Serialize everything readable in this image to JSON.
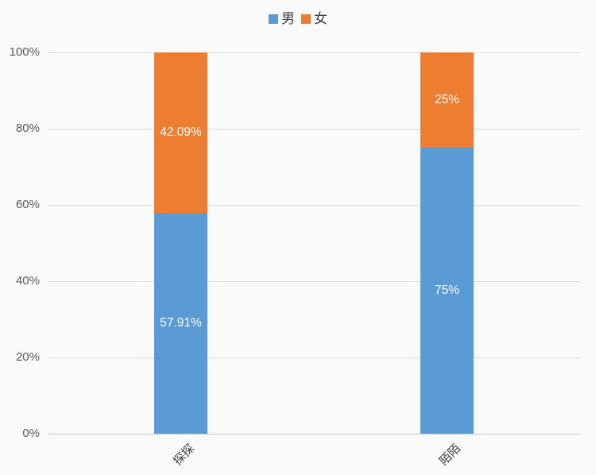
{
  "chart_data": {
    "type": "bar",
    "variant": "100-percent-stacked-column",
    "title": "",
    "xlabel": "",
    "ylabel": "",
    "categories": [
      "探探",
      "陌陌"
    ],
    "series": [
      {
        "name": "男",
        "color": "#5b9bd5",
        "values": [
          57.91,
          75
        ],
        "labels": [
          "57.91%",
          "75%"
        ]
      },
      {
        "name": "女",
        "color": "#ed7d31",
        "values": [
          42.09,
          25
        ],
        "labels": [
          "42.09%",
          "25%"
        ]
      }
    ],
    "y_ticks": [
      "0%",
      "20%",
      "40%",
      "60%",
      "80%",
      "100%"
    ],
    "ylim": [
      0,
      100
    ],
    "grid": true,
    "legend_position": "top"
  }
}
